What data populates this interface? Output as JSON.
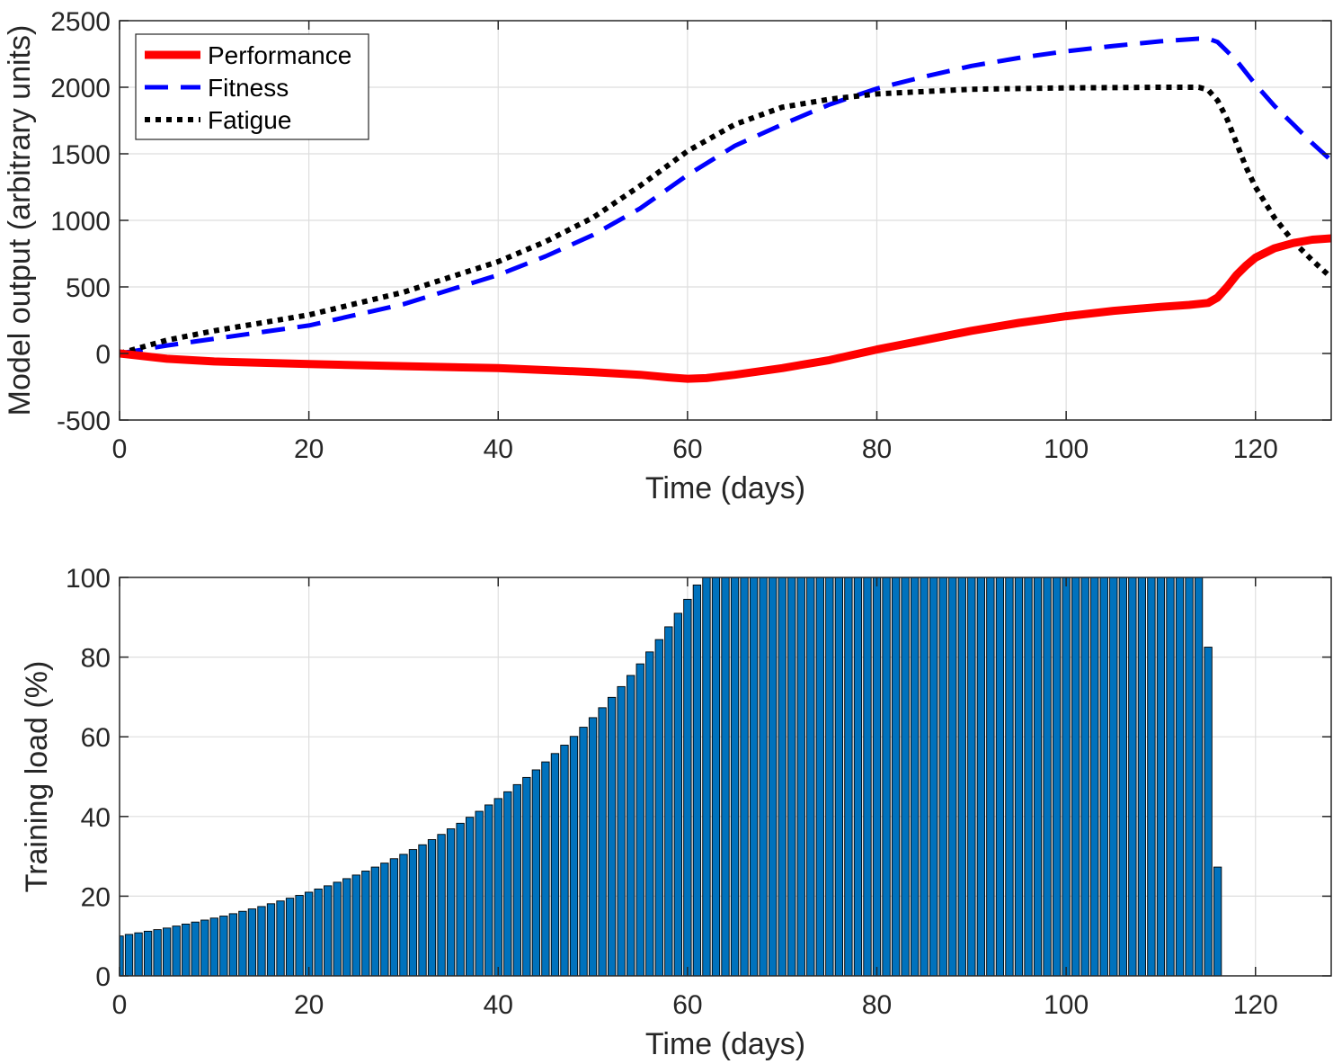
{
  "chart_data": [
    {
      "type": "line",
      "xlabel": "Time (days)",
      "ylabel": "Model output (arbitrary units)",
      "xlim": [
        0,
        128
      ],
      "ylim": [
        -500,
        2500
      ],
      "xticks": [
        0,
        20,
        40,
        60,
        80,
        100,
        120
      ],
      "yticks": [
        -500,
        0,
        500,
        1000,
        1500,
        2000,
        2500
      ],
      "grid": true,
      "legend_position": "top-left",
      "series": [
        {
          "name": "Performance",
          "color": "#ff0000",
          "style": "solid",
          "x": [
            0,
            5,
            10,
            20,
            30,
            40,
            45,
            50,
            55,
            58,
            60,
            62,
            65,
            70,
            75,
            80,
            85,
            90,
            95,
            100,
            105,
            110,
            113,
            115,
            116,
            117,
            118,
            119,
            120,
            122,
            124,
            126,
            128
          ],
          "y": [
            0,
            -40,
            -60,
            -80,
            -95,
            -110,
            -125,
            -140,
            -160,
            -180,
            -190,
            -185,
            -160,
            -110,
            -50,
            30,
            100,
            170,
            230,
            280,
            320,
            350,
            365,
            380,
            420,
            500,
            590,
            660,
            720,
            790,
            830,
            855,
            865
          ]
        },
        {
          "name": "Fitness",
          "color": "#0000ff",
          "style": "dashed",
          "x": [
            0,
            5,
            10,
            20,
            30,
            40,
            45,
            50,
            55,
            60,
            65,
            70,
            75,
            80,
            85,
            90,
            95,
            100,
            105,
            110,
            114,
            115,
            116,
            118,
            120,
            122,
            124,
            126,
            128
          ],
          "y": [
            0,
            60,
            110,
            210,
            370,
            590,
            730,
            890,
            1090,
            1340,
            1560,
            1720,
            1870,
            1990,
            2080,
            2160,
            2220,
            2270,
            2310,
            2345,
            2365,
            2365,
            2340,
            2200,
            2020,
            1860,
            1720,
            1580,
            1450
          ]
        },
        {
          "name": "Fatigue",
          "color": "#000000",
          "style": "dotted",
          "x": [
            0,
            5,
            10,
            20,
            30,
            40,
            45,
            50,
            55,
            60,
            65,
            70,
            75,
            80,
            90,
            100,
            110,
            114,
            115,
            116,
            117,
            118,
            119,
            120,
            122,
            124,
            126,
            128
          ],
          "y": [
            0,
            100,
            170,
            290,
            460,
            690,
            840,
            1020,
            1260,
            1520,
            1720,
            1850,
            1910,
            1950,
            1985,
            1995,
            2000,
            2000,
            1980,
            1900,
            1760,
            1580,
            1400,
            1250,
            1020,
            840,
            700,
            570
          ]
        }
      ]
    },
    {
      "type": "bar",
      "xlabel": "Time (days)",
      "ylabel": "Training load (%)",
      "xlim": [
        0,
        128
      ],
      "ylim": [
        0,
        100
      ],
      "xticks": [
        0,
        20,
        40,
        60,
        80,
        100,
        120
      ],
      "yticks": [
        0,
        20,
        40,
        60,
        80,
        100
      ],
      "grid": true,
      "bar_color": "#0072bd",
      "edge_color": "#000000",
      "days": [
        0,
        1,
        2,
        3,
        4,
        5,
        6,
        7,
        8,
        9,
        10,
        11,
        12,
        13,
        14,
        15,
        16,
        17,
        18,
        19,
        20,
        21,
        22,
        23,
        24,
        25,
        26,
        27,
        28,
        29,
        30,
        31,
        32,
        33,
        34,
        35,
        36,
        37,
        38,
        39,
        40,
        41,
        42,
        43,
        44,
        45,
        46,
        47,
        48,
        49,
        50,
        51,
        52,
        53,
        54,
        55,
        56,
        57,
        58,
        59,
        60,
        61,
        62,
        63,
        64,
        65,
        66,
        67,
        68,
        69,
        70,
        71,
        72,
        73,
        74,
        75,
        76,
        77,
        78,
        79,
        80,
        81,
        82,
        83,
        84,
        85,
        86,
        87,
        88,
        89,
        90,
        91,
        92,
        93,
        94,
        95,
        96,
        97,
        98,
        99,
        100,
        101,
        102,
        103,
        104,
        105,
        106,
        107,
        108,
        109,
        110,
        111,
        112,
        113,
        114,
        115,
        116
      ],
      "values": [
        10.0,
        10.4,
        10.8,
        11.2,
        11.6,
        12.0,
        12.5,
        13.0,
        13.5,
        14.0,
        14.5,
        15.0,
        15.6,
        16.2,
        16.8,
        17.4,
        18.1,
        18.8,
        19.5,
        20.2,
        21.0,
        21.8,
        22.6,
        23.5,
        24.4,
        25.3,
        26.3,
        27.3,
        28.3,
        29.4,
        30.5,
        31.7,
        32.9,
        34.2,
        35.5,
        36.9,
        38.3,
        39.8,
        41.3,
        42.9,
        44.5,
        46.2,
        48.0,
        49.8,
        51.7,
        53.7,
        55.8,
        57.9,
        60.1,
        62.4,
        64.8,
        67.3,
        69.9,
        72.6,
        75.4,
        78.3,
        81.3,
        84.4,
        87.6,
        91.0,
        94.5,
        98.1,
        100,
        100,
        100,
        100,
        100,
        100,
        100,
        100,
        100,
        100,
        100,
        100,
        100,
        100,
        100,
        100,
        100,
        100,
        100,
        100,
        100,
        100,
        100,
        100,
        100,
        100,
        100,
        100,
        100,
        100,
        100,
        100,
        100,
        100,
        100,
        100,
        100,
        100,
        100,
        100,
        100,
        100,
        100,
        100,
        100,
        100,
        100,
        100,
        100,
        100,
        100,
        100,
        100,
        82.5,
        27.3
      ]
    }
  ]
}
